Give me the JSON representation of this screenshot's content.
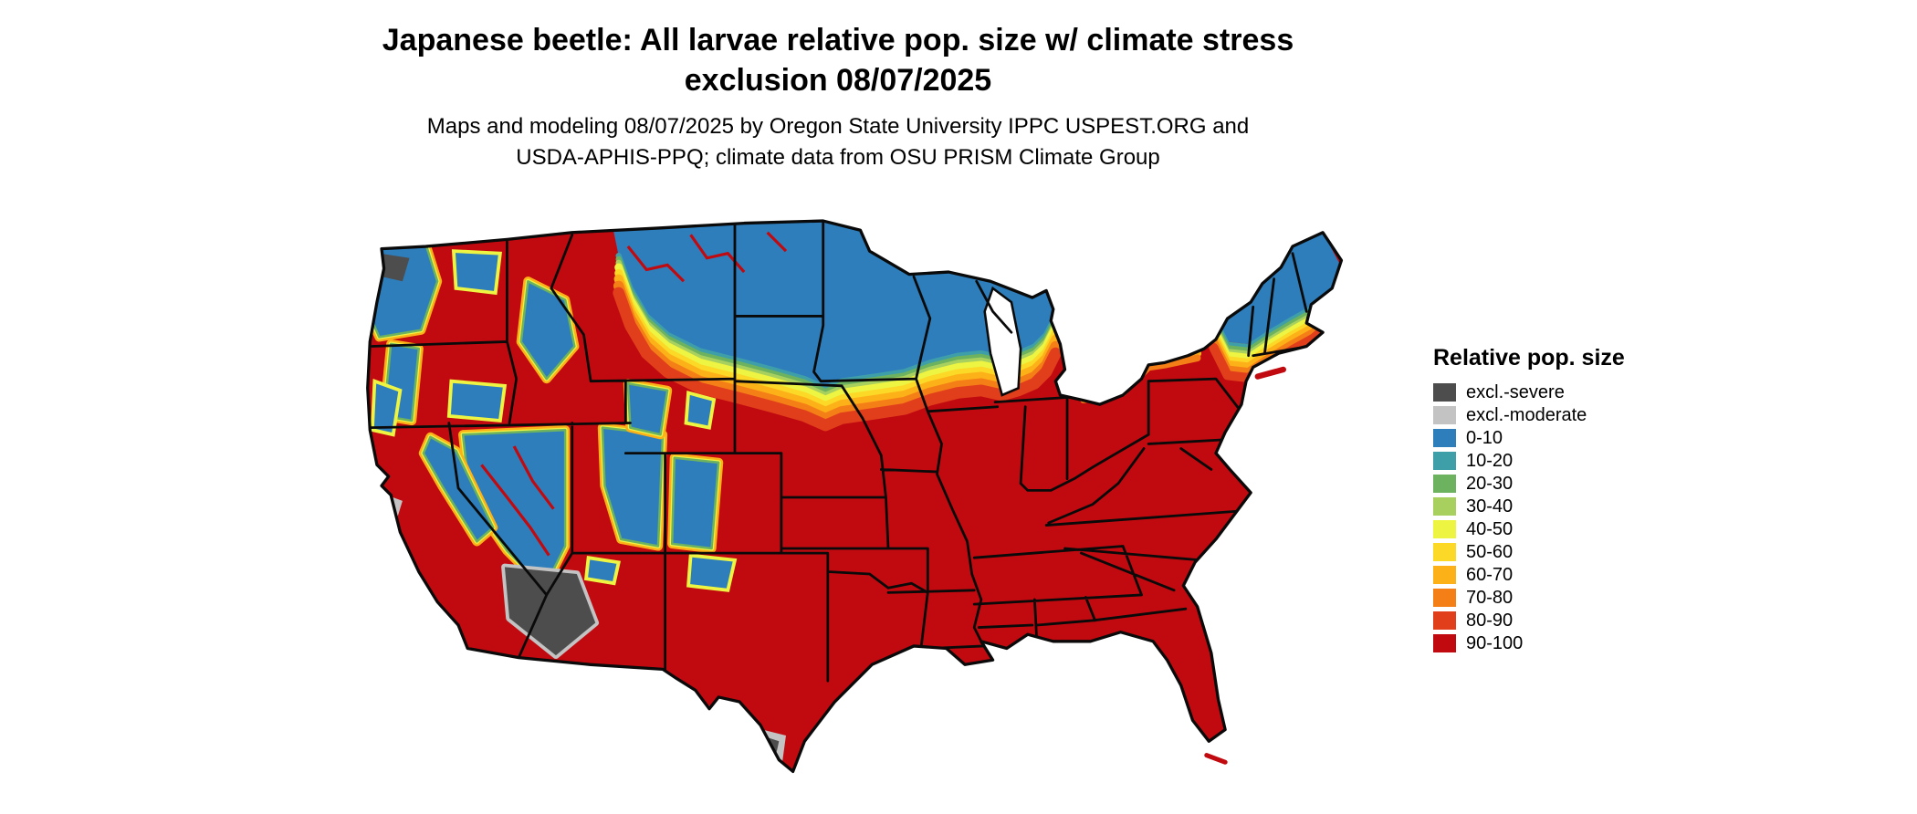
{
  "title": {
    "line1": "Japanese beetle: All larvae relative pop. size w/ climate stress",
    "line2": "exclusion 08/07/2025"
  },
  "subtitle": {
    "line1": "Maps and modeling 08/07/2025 by Oregon State University IPPC USPEST.ORG and",
    "line2": "USDA-APHIS-PPQ; climate data from OSU PRISM Climate Group"
  },
  "legend": {
    "title": "Relative pop. size",
    "items": [
      {
        "label": "excl.-severe",
        "color": "#4d4d4d"
      },
      {
        "label": "excl.-moderate",
        "color": "#c3c3c3"
      },
      {
        "label": "0-10",
        "color": "#2e7ebc"
      },
      {
        "label": "10-20",
        "color": "#3f9fa8"
      },
      {
        "label": "20-30",
        "color": "#6cb25f"
      },
      {
        "label": "30-40",
        "color": "#a8d05f"
      },
      {
        "label": "40-50",
        "color": "#eef442"
      },
      {
        "label": "50-60",
        "color": "#fcd827"
      },
      {
        "label": "60-70",
        "color": "#fdb118"
      },
      {
        "label": "70-80",
        "color": "#f57f17"
      },
      {
        "label": "80-90",
        "color": "#e13f1c"
      },
      {
        "label": "90-100",
        "color": "#c10a10"
      }
    ]
  },
  "map": {
    "palette": {
      "excl_severe": "#4d4d4d",
      "excl_moderate": "#c3c3c3",
      "b0_10": "#2e7ebc",
      "b10_20": "#3f9fa8",
      "b20_30": "#6cb25f",
      "b30_40": "#a8d05f",
      "b40_50": "#eef442",
      "b50_60": "#fcd827",
      "b60_70": "#fdb118",
      "b70_80": "#f57f17",
      "b80_90": "#e13f1c",
      "b90_100": "#c10a10",
      "border": "#0a0a0a"
    }
  }
}
